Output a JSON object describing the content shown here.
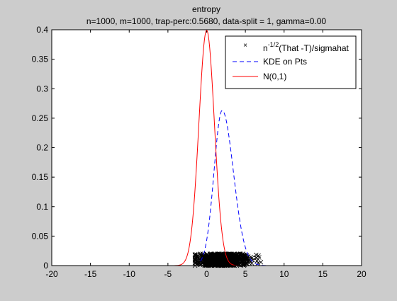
{
  "chart_data": {
    "type": "line",
    "title": "entropy",
    "subtitle": "n=1000, m=1000, trap-perc:0.5680, data-split = 1, gamma=0.00",
    "xlabel": "",
    "ylabel": "",
    "xlim": [
      -20,
      20
    ],
    "ylim": [
      0,
      0.4
    ],
    "xticks": [
      -20,
      -15,
      -10,
      -5,
      0,
      5,
      10,
      15,
      20
    ],
    "yticks": [
      0,
      0.05,
      0.1,
      0.15,
      0.2,
      0.25,
      0.3,
      0.35,
      0.4
    ],
    "grid": false,
    "legend_position": "top-right",
    "series": [
      {
        "name": "n^{-1/2}(That -T)/sigmahat",
        "kind": "scatter",
        "marker": "x",
        "color": "#000000",
        "x_range": [
          -1.5,
          7.0
        ],
        "y_range": [
          0,
          0.02
        ]
      },
      {
        "name": "KDE on Pts",
        "kind": "line",
        "style": "dashed",
        "color": "#0000ff",
        "mean": 2.0,
        "peak": 0.263,
        "x_range": [
          -0.8,
          8.0
        ]
      },
      {
        "name": "N(0,1)",
        "kind": "line",
        "style": "solid",
        "color": "#ff0000",
        "mean": 0,
        "std": 1,
        "peak": 0.399,
        "x_range": [
          -8.0,
          8.0
        ]
      }
    ]
  },
  "legend": {
    "entry1_prefix": "n",
    "entry1_sup": "-1/2",
    "entry1_suffix": "(That -T)/sigmahat",
    "entry2": "KDE on Pts",
    "entry3": "N(0,1)"
  }
}
